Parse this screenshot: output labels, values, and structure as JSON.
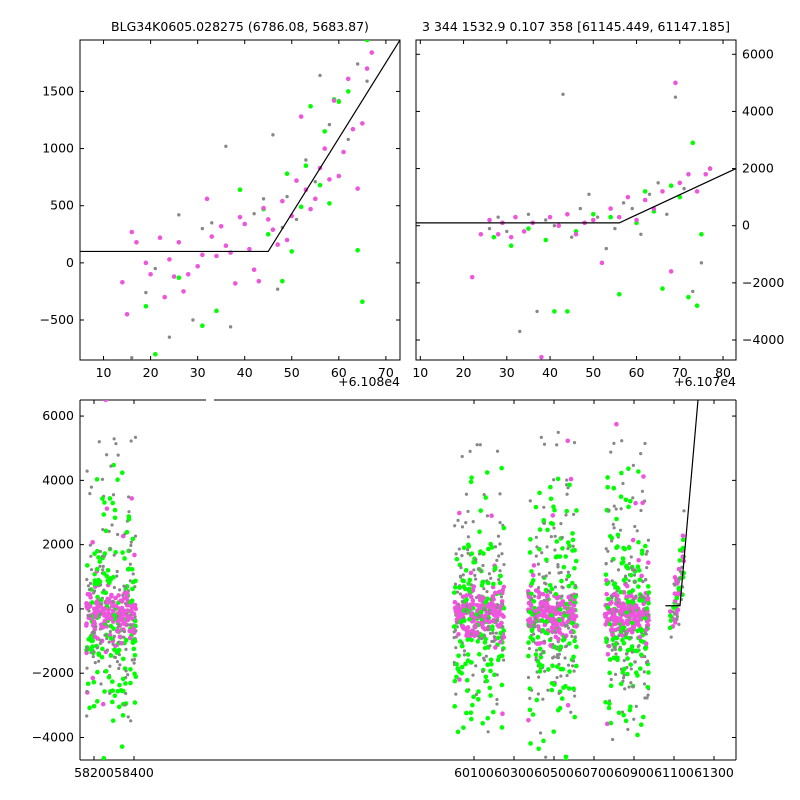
{
  "chart_data": [
    {
      "type": "scatter",
      "title": "BLG34K0605.028275 (6786.08, 5683.87)",
      "x_offset_label": "+6.108e4",
      "xlim": [
        5,
        73
      ],
      "ylim": [
        -850,
        1950
      ],
      "xticks": [
        10,
        20,
        30,
        40,
        50,
        60,
        70
      ],
      "yticks": [
        -500,
        0,
        500,
        1000,
        1500
      ],
      "ytick_side": "left",
      "series": [
        {
          "color": "#888888",
          "points": [
            [
              16,
              -830
            ],
            [
              19,
              -260
            ],
            [
              21,
              -50
            ],
            [
              24,
              -650
            ],
            [
              26,
              420
            ],
            [
              29,
              -500
            ],
            [
              31,
              300
            ],
            [
              33,
              350
            ],
            [
              36,
              1020
            ],
            [
              37,
              -560
            ],
            [
              39,
              640
            ],
            [
              42,
              430
            ],
            [
              44,
              560
            ],
            [
              46,
              1120
            ],
            [
              47,
              -230
            ],
            [
              48,
              310
            ],
            [
              49,
              580
            ],
            [
              51,
              380
            ],
            [
              53,
              900
            ],
            [
              55,
              710
            ],
            [
              56,
              1640
            ],
            [
              58,
              1210
            ],
            [
              60,
              1420
            ],
            [
              62,
              1080
            ],
            [
              64,
              1740
            ],
            [
              66,
              1590
            ]
          ]
        },
        {
          "color": "#00ff00",
          "points": [
            [
              19,
              -380
            ],
            [
              21,
              -800
            ],
            [
              26,
              -130
            ],
            [
              31,
              -550
            ],
            [
              34,
              -420
            ],
            [
              39,
              640
            ],
            [
              44,
              470
            ],
            [
              45,
              250
            ],
            [
              48,
              -160
            ],
            [
              49,
              780
            ],
            [
              50,
              100
            ],
            [
              52,
              490
            ],
            [
              53,
              850
            ],
            [
              54,
              1370
            ],
            [
              56,
              680
            ],
            [
              57,
              1150
            ],
            [
              58,
              520
            ],
            [
              59,
              1430
            ],
            [
              60,
              1410
            ],
            [
              62,
              1500
            ],
            [
              64,
              110
            ],
            [
              65,
              -340
            ],
            [
              66,
              1950
            ]
          ]
        },
        {
          "color": "#ee55dd",
          "points": [
            [
              14,
              -170
            ],
            [
              15,
              -450
            ],
            [
              16,
              270
            ],
            [
              17,
              180
            ],
            [
              19,
              0
            ],
            [
              20,
              -100
            ],
            [
              22,
              220
            ],
            [
              23,
              -300
            ],
            [
              24,
              30
            ],
            [
              25,
              -120
            ],
            [
              26,
              180
            ],
            [
              27,
              -250
            ],
            [
              28,
              -100
            ],
            [
              30,
              -30
            ],
            [
              31,
              70
            ],
            [
              32,
              560
            ],
            [
              33,
              230
            ],
            [
              34,
              60
            ],
            [
              35,
              320
            ],
            [
              36,
              150
            ],
            [
              37,
              90
            ],
            [
              38,
              -180
            ],
            [
              39,
              400
            ],
            [
              40,
              340
            ],
            [
              41,
              120
            ],
            [
              42,
              -60
            ],
            [
              43,
              -160
            ],
            [
              44,
              480
            ],
            [
              45,
              380
            ],
            [
              46,
              290
            ],
            [
              47,
              160
            ],
            [
              48,
              540
            ],
            [
              49,
              200
            ],
            [
              50,
              410
            ],
            [
              51,
              720
            ],
            [
              52,
              1280
            ],
            [
              53,
              640
            ],
            [
              54,
              470
            ],
            [
              55,
              560
            ],
            [
              56,
              830
            ],
            [
              57,
              1000
            ],
            [
              58,
              730
            ],
            [
              59,
              1420
            ],
            [
              60,
              760
            ],
            [
              61,
              970
            ],
            [
              62,
              1610
            ],
            [
              63,
              1170
            ],
            [
              64,
              650
            ],
            [
              65,
              1220
            ],
            [
              66,
              1700
            ],
            [
              67,
              1840
            ]
          ]
        }
      ],
      "model_line": [
        [
          5,
          100
        ],
        [
          45,
          100
        ],
        [
          73,
          1950
        ]
      ]
    },
    {
      "type": "scatter",
      "title": "3 344 1532.9 0.107 358 [61145.449, 61147.185]",
      "x_offset_label": "+6.107e4",
      "xlim": [
        9,
        83
      ],
      "ylim": [
        -4700,
        6500
      ],
      "xticks": [
        10,
        20,
        30,
        40,
        50,
        60,
        70,
        80
      ],
      "yticks": [
        -4000,
        -2000,
        0,
        2000,
        4000,
        6000
      ],
      "ytick_side": "right",
      "series": [
        {
          "color": "#888888",
          "points": [
            [
              26,
              -100
            ],
            [
              28,
              300
            ],
            [
              30,
              -200
            ],
            [
              33,
              -3700
            ],
            [
              35,
              400
            ],
            [
              37,
              -3000
            ],
            [
              39,
              200
            ],
            [
              41,
              0
            ],
            [
              43,
              4600
            ],
            [
              45,
              -400
            ],
            [
              47,
              600
            ],
            [
              49,
              1100
            ],
            [
              51,
              300
            ],
            [
              53,
              -800
            ],
            [
              55,
              -100
            ],
            [
              57,
              800
            ],
            [
              59,
              600
            ],
            [
              61,
              -300
            ],
            [
              63,
              1100
            ],
            [
              65,
              1500
            ],
            [
              67,
              400
            ],
            [
              69,
              4500
            ],
            [
              71,
              1300
            ],
            [
              73,
              -2300
            ],
            [
              75,
              -1300
            ],
            [
              77,
              2000
            ]
          ]
        },
        {
          "color": "#00ff00",
          "points": [
            [
              27,
              -400
            ],
            [
              31,
              -700
            ],
            [
              35,
              -100
            ],
            [
              39,
              -500
            ],
            [
              41,
              -3000
            ],
            [
              44,
              -3000
            ],
            [
              46,
              -200
            ],
            [
              50,
              400
            ],
            [
              54,
              300
            ],
            [
              56,
              -2400
            ],
            [
              60,
              100
            ],
            [
              62,
              1200
            ],
            [
              64,
              500
            ],
            [
              66,
              -2200
            ],
            [
              68,
              1400
            ],
            [
              70,
              1000
            ],
            [
              72,
              -2500
            ],
            [
              73,
              2900
            ],
            [
              74,
              -2800
            ],
            [
              75,
              -300
            ],
            [
              77,
              2000
            ]
          ]
        },
        {
          "color": "#ee55dd",
          "points": [
            [
              22,
              -1800
            ],
            [
              24,
              -300
            ],
            [
              26,
              200
            ],
            [
              28,
              -300
            ],
            [
              29,
              100
            ],
            [
              31,
              -400
            ],
            [
              32,
              300
            ],
            [
              34,
              -200
            ],
            [
              36,
              100
            ],
            [
              38,
              -4600
            ],
            [
              40,
              300
            ],
            [
              42,
              0
            ],
            [
              44,
              400
            ],
            [
              46,
              -300
            ],
            [
              48,
              100
            ],
            [
              50,
              200
            ],
            [
              52,
              -1300
            ],
            [
              54,
              600
            ],
            [
              56,
              300
            ],
            [
              58,
              1000
            ],
            [
              60,
              200
            ],
            [
              62,
              900
            ],
            [
              64,
              600
            ],
            [
              66,
              1200
            ],
            [
              68,
              -1600
            ],
            [
              69,
              5000
            ],
            [
              70,
              1500
            ],
            [
              72,
              1800
            ],
            [
              74,
              1200
            ],
            [
              76,
              1800
            ],
            [
              77,
              2000
            ]
          ]
        }
      ],
      "model_line": [
        [
          9,
          100
        ],
        [
          56,
          100
        ],
        [
          83,
          2000
        ]
      ]
    },
    {
      "type": "scatter",
      "xlim": [
        58130,
        61410
      ],
      "ylim": [
        -4700,
        6500
      ],
      "xticks": [
        58200,
        58400,
        60100,
        60300,
        60500,
        60700,
        60900,
        61100,
        61300
      ],
      "yticks": [
        -4000,
        -2000,
        0,
        2000,
        4000,
        6000
      ],
      "ytick_side": "left",
      "seasons": [
        [
          58160,
          58410
        ],
        [
          60000,
          60250
        ],
        [
          60370,
          60615
        ],
        [
          60755,
          60975
        ],
        [
          61080,
          61150
        ]
      ],
      "axis_break": [
        58420,
        60005
      ],
      "model_line": [
        [
          61057,
          100
        ],
        [
          61130,
          100
        ],
        [
          61220,
          6500
        ]
      ]
    }
  ]
}
